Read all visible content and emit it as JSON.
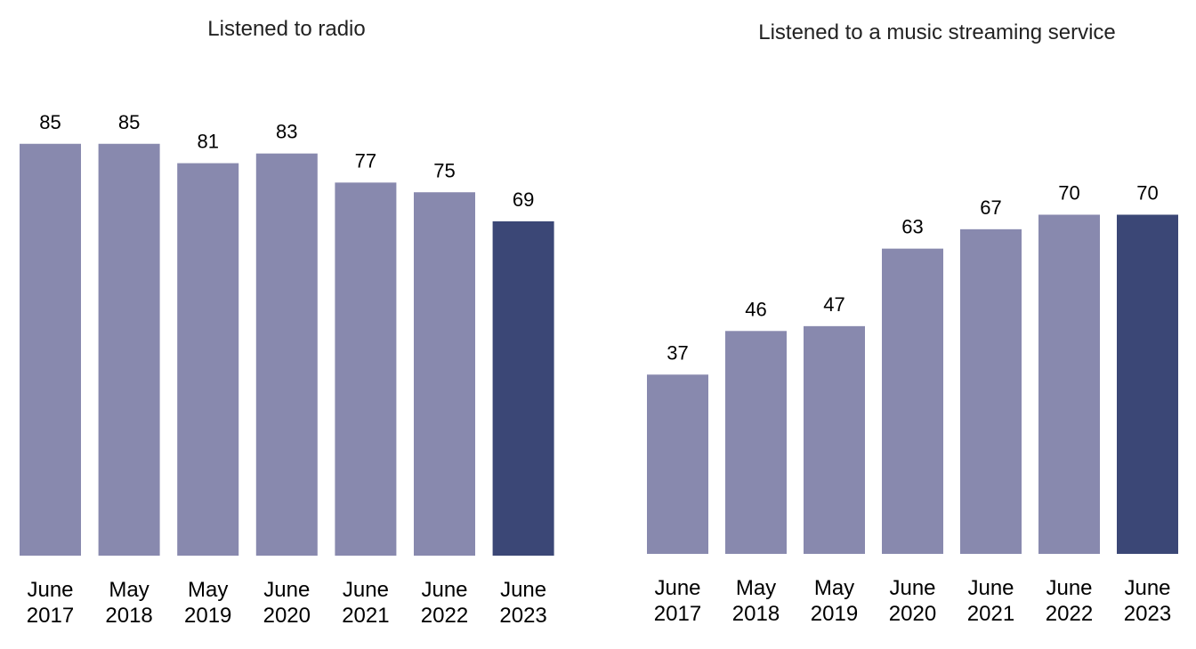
{
  "colors": {
    "bar": "#8889ae",
    "highlight": "#3b4776"
  },
  "chart_data": [
    {
      "type": "bar",
      "title": "Listened to radio",
      "categories": [
        "June 2017",
        "May 2018",
        "May 2019",
        "June 2020",
        "June 2021",
        "June 2022",
        "June 2023"
      ],
      "values": [
        85,
        85,
        81,
        83,
        77,
        75,
        69
      ],
      "highlight_index": 6,
      "ylim": [
        0,
        100
      ],
      "grid": false,
      "data_labels": true
    },
    {
      "type": "bar",
      "title": "Listened to a music streaming service",
      "categories": [
        "June 2017",
        "May 2018",
        "May 2019",
        "June 2020",
        "June 2021",
        "June 2022",
        "June 2023"
      ],
      "values": [
        37,
        46,
        47,
        63,
        67,
        70,
        70
      ],
      "highlight_index": 6,
      "ylim": [
        0,
        100
      ],
      "grid": false,
      "data_labels": true
    }
  ]
}
